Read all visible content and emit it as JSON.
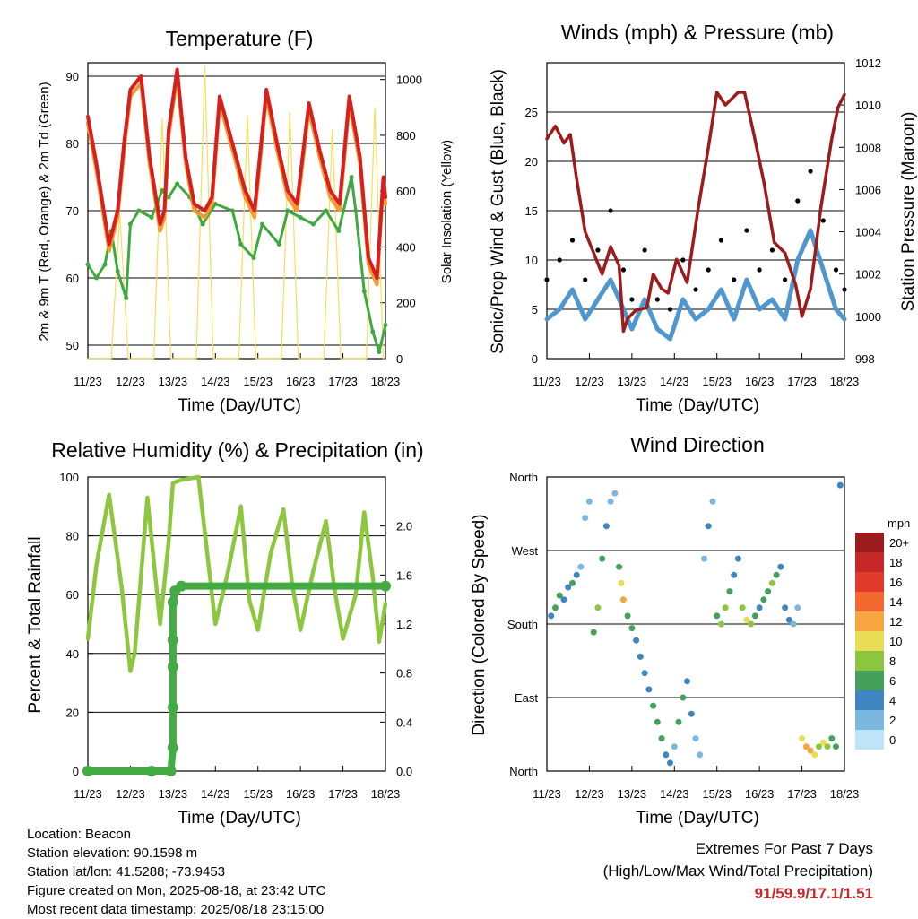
{
  "panels": {
    "temperature": {
      "title": "Temperature (F)",
      "ylabel_left": "2m & 9m T (Red, Orange) & 2m Td (Green)",
      "ylabel_right": "Solar Insolation (Yellow)",
      "xlabel": "Time (Day/UTC)"
    },
    "winds": {
      "title": "Winds (mph) & Pressure (mb)",
      "ylabel_left": "Sonic/Prop Wind & Gust (Blue, Black)",
      "ylabel_right": "Station Pressure (Maroon)",
      "xlabel": "Time (Day/UTC)"
    },
    "humidity": {
      "title": "Relative Humidity (%) & Precipitation (in)",
      "ylabel_left": "Percent & Total Rainfall",
      "xlabel": "Time (Day/UTC)"
    },
    "direction": {
      "title": "Wind Direction",
      "ylabel_left": "Direction (Colored By Speed)",
      "xlabel": "Time (Day/UTC)",
      "colorbar_title": "mph",
      "colorbar_labels": [
        "20+",
        "18",
        "16",
        "14",
        "12",
        "10",
        "8",
        "6",
        "4",
        "2",
        "0"
      ],
      "colorbar_colors": [
        "#9b1c1c",
        "#c62828",
        "#e03a2c",
        "#f26a30",
        "#f7a540",
        "#e8dd55",
        "#8cc63f",
        "#44a05a",
        "#3f85c0",
        "#7ab8e0",
        "#bfe3f7"
      ]
    }
  },
  "footer": {
    "location": "Location: Beacon",
    "elevation": "Station elevation: 90.1598 m",
    "latlon": "Station lat/lon: 41.5288; -73.9453",
    "created": "Figure created on Mon, 2025-08-18, at 23:42 UTC",
    "recent": "Most recent data timestamp: 2025/08/18 23:15:00",
    "extremes_title": "Extremes For Past 7 Days",
    "extremes_sub": "(High/Low/Max Wind/Total Precipitation)",
    "extremes_values": "91/59.9/17.1/1.51"
  },
  "chart_data": [
    {
      "type": "line",
      "title": "Temperature (F)",
      "xlabel": "Time (Day/UTC)",
      "ylabel": "2m & 9m T (Red, Orange) & 2m Td (Green)",
      "ylabel_right": "Solar Insolation (Yellow)",
      "x_ticks": [
        "11/23",
        "12/23",
        "13/23",
        "14/23",
        "15/23",
        "16/23",
        "17/23",
        "18/23"
      ],
      "xlim": [
        0,
        7
      ],
      "ylim": [
        48,
        92
      ],
      "y_ticks": [
        50,
        60,
        70,
        80,
        90
      ],
      "ylim_right": [
        0,
        1060
      ],
      "y_ticks_right": [
        0,
        200,
        400,
        600,
        800,
        1000
      ],
      "grid": true,
      "colors": {
        "t2m": "#d62020",
        "t9m": "#f29b30",
        "td": "#3fa83f",
        "solar": "#f2e05a"
      },
      "series": [
        {
          "id": "t2m",
          "x": [
            0,
            0.2,
            0.5,
            0.7,
            0.85,
            1.0,
            1.25,
            1.45,
            1.7,
            1.8,
            1.9,
            2.1,
            2.3,
            2.5,
            2.75,
            2.92,
            3.1,
            3.4,
            3.7,
            3.92,
            4.2,
            4.45,
            4.7,
            4.92,
            5.2,
            5.45,
            5.7,
            5.92,
            6.15,
            6.4,
            6.6,
            6.8,
            6.95,
            7.0
          ],
          "values": [
            84,
            77,
            65,
            70,
            80,
            88,
            90,
            78,
            68,
            70,
            82,
            91,
            78,
            71,
            70,
            72,
            87,
            80,
            73,
            70,
            88,
            80,
            73,
            71,
            86,
            79,
            73,
            71,
            87,
            78,
            63,
            60,
            75,
            72
          ]
        },
        {
          "id": "t9m",
          "x": [
            0,
            0.2,
            0.5,
            0.7,
            0.85,
            1.0,
            1.25,
            1.45,
            1.7,
            1.8,
            1.9,
            2.1,
            2.3,
            2.5,
            2.75,
            2.92,
            3.1,
            3.4,
            3.7,
            3.92,
            4.2,
            4.45,
            4.7,
            4.92,
            5.2,
            5.45,
            5.7,
            5.92,
            6.15,
            6.4,
            6.6,
            6.8,
            6.95,
            7.0
          ],
          "values": [
            83,
            76,
            64,
            69,
            79,
            87,
            89,
            77,
            67,
            69,
            81,
            90,
            77,
            70,
            69,
            71,
            86,
            79,
            72,
            69,
            87,
            79,
            72,
            70,
            85,
            78,
            72,
            70,
            86,
            77,
            62,
            59,
            74,
            71
          ]
        },
        {
          "id": "td",
          "x": [
            0,
            0.2,
            0.4,
            0.55,
            0.7,
            0.9,
            1.0,
            1.2,
            1.5,
            1.75,
            1.9,
            2.1,
            2.4,
            2.7,
            3.0,
            3.4,
            3.6,
            3.9,
            4.1,
            4.5,
            4.7,
            5.0,
            5.3,
            5.6,
            5.9,
            6.2,
            6.3,
            6.5,
            6.7,
            6.85,
            7.0
          ],
          "values": [
            62,
            60,
            62,
            67,
            61,
            57,
            68,
            70,
            69,
            73,
            72,
            74,
            72,
            68,
            71,
            70,
            65,
            63,
            68,
            65,
            70,
            69,
            68,
            70,
            67,
            75,
            70,
            58,
            52,
            49,
            53
          ]
        },
        {
          "id": "solar",
          "x": [
            0,
            0.55,
            0.75,
            0.95,
            1.55,
            1.75,
            1.95,
            2.55,
            2.75,
            2.95,
            3.55,
            3.75,
            3.95,
            4.55,
            4.75,
            4.95,
            5.55,
            5.75,
            5.95,
            6.55,
            6.75,
            6.95
          ],
          "values": [
            0,
            0,
            520,
            0,
            0,
            860,
            0,
            0,
            1050,
            0,
            0,
            870,
            0,
            0,
            880,
            0,
            0,
            820,
            0,
            0,
            900,
            0
          ]
        }
      ]
    },
    {
      "type": "line",
      "title": "Winds (mph) & Pressure (mb)",
      "xlabel": "Time (Day/UTC)",
      "ylabel": "Sonic/Prop Wind & Gust (Blue, Black)",
      "ylabel_right": "Station Pressure (Maroon)",
      "x_ticks": [
        "11/23",
        "12/23",
        "13/23",
        "14/23",
        "15/23",
        "16/23",
        "17/23",
        "18/23"
      ],
      "xlim": [
        0,
        7
      ],
      "ylim": [
        0,
        30
      ],
      "y_ticks": [
        0,
        5,
        10,
        15,
        20,
        25
      ],
      "ylim_right": [
        998,
        1012
      ],
      "y_ticks_right": [
        998,
        1000,
        1002,
        1004,
        1006,
        1008,
        1010,
        1012
      ],
      "grid": true,
      "colors": {
        "wind": "#4f97d1",
        "gust": "#000000",
        "pressure": "#9e1b1b"
      },
      "series": [
        {
          "id": "wind",
          "x": [
            0,
            0.3,
            0.6,
            0.9,
            1.2,
            1.5,
            1.8,
            2.0,
            2.3,
            2.6,
            2.9,
            3.2,
            3.5,
            3.8,
            4.1,
            4.4,
            4.7,
            5.0,
            5.3,
            5.6,
            5.9,
            6.2,
            6.5,
            6.8,
            7.0
          ],
          "values": [
            4,
            5,
            7,
            4,
            6,
            8,
            5,
            3,
            6,
            3,
            2,
            6,
            4,
            5,
            7,
            4,
            8,
            5,
            6,
            4,
            10,
            13,
            9,
            5,
            4
          ]
        },
        {
          "id": "gust",
          "x": [
            0,
            0.3,
            0.6,
            0.9,
            1.2,
            1.5,
            1.8,
            2.0,
            2.3,
            2.6,
            2.9,
            3.2,
            3.5,
            3.8,
            4.1,
            4.4,
            4.7,
            5.0,
            5.3,
            5.6,
            5.9,
            6.2,
            6.5,
            6.8,
            7.0
          ],
          "values": [
            8,
            10,
            12,
            8,
            11,
            15,
            9,
            6,
            11,
            6,
            5,
            10,
            7,
            9,
            12,
            8,
            13,
            9,
            11,
            8,
            16,
            19,
            14,
            9,
            7
          ]
        },
        {
          "id": "pressure",
          "x": [
            0,
            0.2,
            0.4,
            0.55,
            0.7,
            0.9,
            1.1,
            1.3,
            1.5,
            1.7,
            1.8,
            1.9,
            2.1,
            2.35,
            2.5,
            2.7,
            2.85,
            3.05,
            3.3,
            3.55,
            3.8,
            4.0,
            4.2,
            4.35,
            4.5,
            4.65,
            4.85,
            5.1,
            5.35,
            5.6,
            5.85,
            6.0,
            6.2,
            6.45,
            6.7,
            6.85,
            7.0
          ],
          "values": [
            1008.4,
            1009.0,
            1008.2,
            1008.6,
            1006.5,
            1004.0,
            1003.0,
            1002.0,
            1003.3,
            1002.4,
            999.3,
            999.9,
            1000.3,
            1000.4,
            1002.0,
            1001.3,
            1001.1,
            1002.7,
            1001.6,
            1005.0,
            1008.0,
            1010.6,
            1010.0,
            1010.3,
            1010.6,
            1010.6,
            1008.8,
            1006.4,
            1003.5,
            1003.0,
            1001.5,
            1000.0,
            1001.3,
            1005.2,
            1008.4,
            1009.9,
            1010.5
          ]
        }
      ]
    },
    {
      "type": "line",
      "title": "Relative Humidity (%) & Precipitation (in)",
      "xlabel": "Time (Day/UTC)",
      "ylabel": "Percent & Total Rainfall",
      "x_ticks": [
        "11/23",
        "12/23",
        "13/23",
        "14/23",
        "15/23",
        "16/23",
        "17/23",
        "18/23"
      ],
      "xlim": [
        0,
        7
      ],
      "ylim": [
        0,
        100
      ],
      "y_ticks": [
        0,
        20,
        40,
        60,
        80,
        100
      ],
      "ylim_right": [
        0,
        2.4
      ],
      "y_ticks_right": [
        0.0,
        0.4,
        0.8,
        1.2,
        1.6,
        2.0
      ],
      "grid": true,
      "colors": {
        "rh": "#8dc63f",
        "precip": "#44ab44"
      },
      "series": [
        {
          "id": "rh",
          "x": [
            0,
            0.2,
            0.5,
            0.8,
            1.0,
            1.1,
            1.4,
            1.7,
            1.9,
            2.0,
            2.2,
            2.6,
            2.8,
            3.0,
            3.3,
            3.6,
            3.8,
            4.0,
            4.3,
            4.6,
            4.8,
            5.0,
            5.3,
            5.6,
            5.8,
            6.0,
            6.3,
            6.5,
            6.7,
            6.85,
            7.0
          ],
          "values": [
            45,
            70,
            94,
            62,
            34,
            40,
            93,
            50,
            78,
            98,
            99,
            100,
            75,
            50,
            68,
            90,
            58,
            48,
            74,
            89,
            64,
            48,
            68,
            85,
            62,
            45,
            60,
            88,
            66,
            44,
            57
          ]
        },
        {
          "id": "precip",
          "x": [
            0,
            1.5,
            1.95,
            2.0,
            2.0,
            2.0,
            2.0,
            2.0,
            2.05,
            2.2,
            7.0
          ],
          "values": [
            0.0,
            0.0,
            0.0,
            0.19,
            0.52,
            0.85,
            1.07,
            1.38,
            1.47,
            1.51,
            1.51
          ]
        }
      ]
    },
    {
      "type": "scatter",
      "title": "Wind Direction",
      "xlabel": "Time (Day/UTC)",
      "ylabel": "Direction (Colored By Speed)",
      "x_ticks": [
        "11/23",
        "12/23",
        "13/23",
        "14/23",
        "15/23",
        "16/23",
        "17/23",
        "18/23"
      ],
      "xlim": [
        0,
        7
      ],
      "ylim": [
        0,
        360
      ],
      "y_tick_values": [
        0,
        90,
        180,
        270,
        360
      ],
      "y_tick_labels": [
        "North",
        "East",
        "South",
        "West",
        "North"
      ],
      "grid": true,
      "colorbar_title": "mph",
      "series": [
        {
          "name": "direction",
          "x": [
            0.1,
            0.2,
            0.3,
            0.4,
            0.5,
            0.6,
            0.7,
            0.8,
            0.9,
            1.0,
            1.1,
            1.2,
            1.3,
            1.4,
            1.5,
            1.6,
            1.7,
            1.75,
            1.8,
            1.9,
            2.0,
            2.1,
            2.2,
            2.3,
            2.4,
            2.5,
            2.6,
            2.7,
            2.8,
            2.9,
            3.0,
            3.1,
            3.2,
            3.3,
            3.4,
            3.5,
            3.6,
            3.7,
            3.8,
            3.9,
            4.0,
            4.1,
            4.2,
            4.3,
            4.4,
            4.5,
            4.6,
            4.7,
            4.8,
            4.9,
            5.0,
            5.1,
            5.2,
            5.3,
            5.4,
            5.5,
            5.6,
            5.7,
            5.8,
            5.9,
            6.0,
            6.1,
            6.2,
            6.3,
            6.4,
            6.5,
            6.6,
            6.7,
            6.8,
            6.9
          ],
          "values": [
            190,
            200,
            215,
            210,
            225,
            230,
            240,
            250,
            310,
            330,
            170,
            200,
            260,
            300,
            330,
            340,
            250,
            230,
            210,
            190,
            175,
            160,
            140,
            120,
            100,
            80,
            60,
            40,
            20,
            10,
            30,
            60,
            90,
            110,
            70,
            40,
            20,
            260,
            300,
            330,
            190,
            180,
            200,
            220,
            240,
            260,
            200,
            185,
            180,
            190,
            200,
            210,
            220,
            230,
            240,
            250,
            200,
            185,
            180,
            200,
            40,
            30,
            25,
            20,
            30,
            35,
            30,
            40,
            30,
            350
          ],
          "speeds": [
            3,
            5,
            6,
            4,
            3,
            5,
            4,
            2,
            1,
            2,
            5,
            7,
            6,
            3,
            2,
            1,
            6,
            9,
            11,
            6,
            5,
            4,
            3,
            3,
            4,
            5,
            6,
            5,
            4,
            3,
            2,
            5,
            6,
            4,
            3,
            2,
            1,
            2,
            3,
            2,
            6,
            8,
            7,
            5,
            4,
            3,
            8,
            9,
            7,
            5,
            4,
            5,
            6,
            7,
            6,
            4,
            4,
            3,
            2,
            1,
            10,
            12,
            11,
            9,
            8,
            10,
            7,
            6,
            5,
            4
          ]
        }
      ]
    }
  ]
}
